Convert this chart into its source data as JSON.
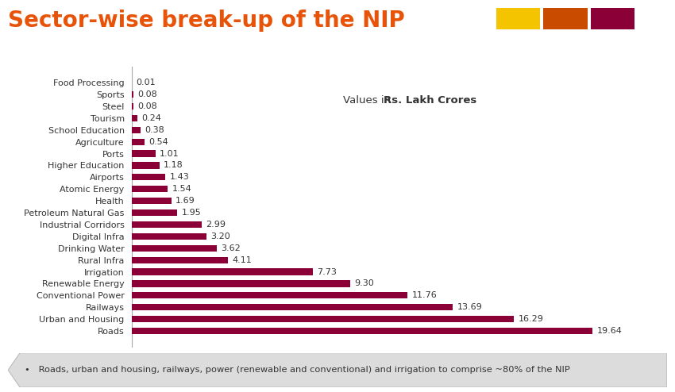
{
  "title": "Sector-wise break-up of the NIP",
  "title_color": "#E8530A",
  "title_fontsize": 20,
  "categories": [
    "Food Processing",
    "Sports",
    "Steel",
    "Tourism",
    "School Education",
    "Agriculture",
    "Ports",
    "Higher Education",
    "Airports",
    "Atomic Energy",
    "Health",
    "Petroleum Natural Gas",
    "Industrial Corridors",
    "Digital Infra",
    "Drinking Water",
    "Rural Infra",
    "Irrigation",
    "Renewable Energy",
    "Conventional Power",
    "Railways",
    "Urban and Housing",
    "Roads"
  ],
  "values": [
    0.01,
    0.08,
    0.08,
    0.24,
    0.38,
    0.54,
    1.01,
    1.18,
    1.43,
    1.54,
    1.69,
    1.95,
    2.99,
    3.2,
    3.62,
    4.11,
    7.73,
    9.3,
    11.76,
    13.69,
    16.29,
    19.64
  ],
  "bar_color": "#8B0037",
  "footer_text": "Roads, urban and housing, railways, power (renewable and conventional) and irrigation to comprise ~80% of the NIP",
  "bg_color": "#FFFFFF",
  "legend_colors": [
    "#F5C400",
    "#C94B00",
    "#8B0037"
  ],
  "xlim": [
    0,
    22
  ],
  "label_fontsize": 8.0,
  "value_fontsize": 8.0,
  "ann_normal": "Values in ",
  "ann_bold": "Rs. Lakh Crores"
}
